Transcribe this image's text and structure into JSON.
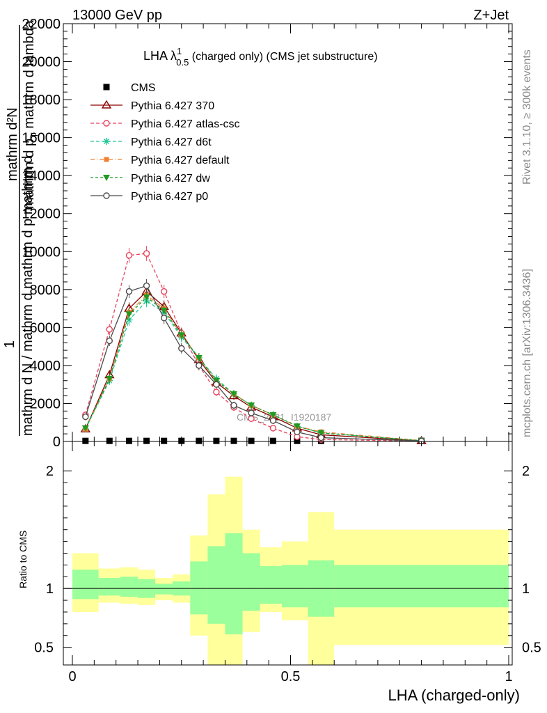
{
  "header": {
    "left": "13000 GeV pp",
    "right": "Z+Jet"
  },
  "side": {
    "rivet": "Rivet 3.1.10, ≥ 300k events",
    "mcplots": "mcplots.cern.ch [arXiv:1306.3436]"
  },
  "watermark": "CMS_2021_I1920187",
  "chart_data": [
    {
      "type": "line",
      "title_main": "LHA λ",
      "title_sup": "1",
      "title_sub": "0.5",
      "title_rest": " (charged only) (CMS jet substructure)",
      "ylabel_top": "1",
      "ylabel_num": "mathrm d²N",
      "ylabel_num2": "mathrm d p",
      "ylabel_num2_sub": "T",
      "ylabel_num3": " mathrm d lambda",
      "ylabel_den": "mathrm d N / mathrm d mathrm d p",
      "ylabel_den2": " mathrm d",
      "xlim": [
        0,
        1
      ],
      "ylim": [
        0,
        22000
      ],
      "ytick_labels": [
        "0",
        "2000",
        "4000",
        "6000",
        "8000",
        "10000",
        "12000",
        "14000",
        "16000",
        "18000",
        "20000",
        "22000"
      ],
      "ytick_values": [
        0,
        2000,
        4000,
        6000,
        8000,
        10000,
        12000,
        14000,
        16000,
        18000,
        20000,
        22000
      ],
      "x": [
        0.03,
        0.085,
        0.13,
        0.17,
        0.21,
        0.25,
        0.29,
        0.33,
        0.37,
        0.41,
        0.46,
        0.515,
        0.57,
        0.8
      ],
      "legend_position": "top-left",
      "series": [
        {
          "name": "CMS",
          "color": "#000000",
          "dash": "",
          "marker": "square",
          "values": [
            30,
            30,
            30,
            30,
            30,
            30,
            30,
            30,
            30,
            30,
            30,
            30,
            30,
            30
          ]
        },
        {
          "name": "Pythia 6.427 370",
          "color": "#8b0000",
          "dash": "",
          "marker": "triangle-open",
          "values": [
            650,
            3500,
            7000,
            7900,
            7100,
            5700,
            4300,
            3100,
            2400,
            1800,
            1300,
            700,
            350,
            30
          ]
        },
        {
          "name": "Pythia 6.427 atlas-csc",
          "color": "#e8425a",
          "dash": "5,3",
          "marker": "circle-open",
          "values": [
            1400,
            5900,
            9800,
            9900,
            7900,
            5700,
            4000,
            2600,
            1800,
            1200,
            700,
            250,
            100,
            20
          ]
        },
        {
          "name": "Pythia 6.427 d6t",
          "color": "#1fc79a",
          "dash": "5,3",
          "marker": "star",
          "values": [
            650,
            3200,
            6400,
            7400,
            6800,
            5500,
            4400,
            3300,
            2500,
            1900,
            1400,
            800,
            450,
            40
          ]
        },
        {
          "name": "Pythia 6.427 default",
          "color": "#f08030",
          "dash": "6,3,1,3",
          "marker": "square-filled",
          "values": [
            650,
            3300,
            6800,
            7700,
            7000,
            5600,
            4400,
            3200,
            2500,
            1900,
            1400,
            800,
            500,
            50
          ]
        },
        {
          "name": "Pythia 6.427 dw",
          "color": "#229922",
          "dash": "4,3",
          "marker": "triangle-down-filled",
          "values": [
            700,
            3300,
            6700,
            7600,
            6900,
            5600,
            4400,
            3200,
            2500,
            1900,
            1400,
            800,
            450,
            40
          ]
        },
        {
          "name": "Pythia 6.427 p0",
          "color": "#4a4a4a",
          "dash": "",
          "marker": "circle-open",
          "values": [
            1300,
            5300,
            7900,
            8200,
            6500,
            4900,
            4000,
            3000,
            1900,
            1500,
            1100,
            500,
            200,
            25
          ]
        }
      ]
    },
    {
      "type": "area",
      "ylabel": "Ratio to CMS",
      "xlabel": "LHA (charged-only)",
      "xlim": [
        0,
        1
      ],
      "ylim": [
        0.35,
        2.25
      ],
      "ytick_labels": [
        "0.5",
        "1",
        "2"
      ],
      "ytick_values": [
        0.5,
        1,
        2
      ],
      "xtick_labels": [
        "0",
        "0.5",
        "1"
      ],
      "xtick_values": [
        0,
        0.5,
        1
      ],
      "bins": [
        0,
        0.06,
        0.11,
        0.15,
        0.19,
        0.23,
        0.27,
        0.31,
        0.35,
        0.39,
        0.43,
        0.48,
        0.54,
        0.6,
        1.0
      ],
      "band_inner": {
        "color": "#9bff9b",
        "lo": [
          0.91,
          0.94,
          0.93,
          0.92,
          0.95,
          0.94,
          0.78,
          0.7,
          0.61,
          0.81,
          0.87,
          0.84,
          0.76,
          0.84
        ],
        "hi": [
          1.16,
          1.09,
          1.1,
          1.08,
          1.04,
          1.06,
          1.23,
          1.36,
          1.47,
          1.3,
          1.19,
          1.2,
          1.24,
          1.2
        ]
      },
      "band_outer": {
        "color": "#ffff9b",
        "lo": [
          0.8,
          0.88,
          0.87,
          0.86,
          0.9,
          0.88,
          0.6,
          0.35,
          0.35,
          0.63,
          0.8,
          0.73,
          0.35,
          0.52
        ],
        "hi": [
          1.3,
          1.17,
          1.18,
          1.16,
          1.09,
          1.12,
          1.45,
          1.8,
          1.95,
          1.5,
          1.35,
          1.4,
          1.65,
          1.5
        ]
      }
    }
  ]
}
